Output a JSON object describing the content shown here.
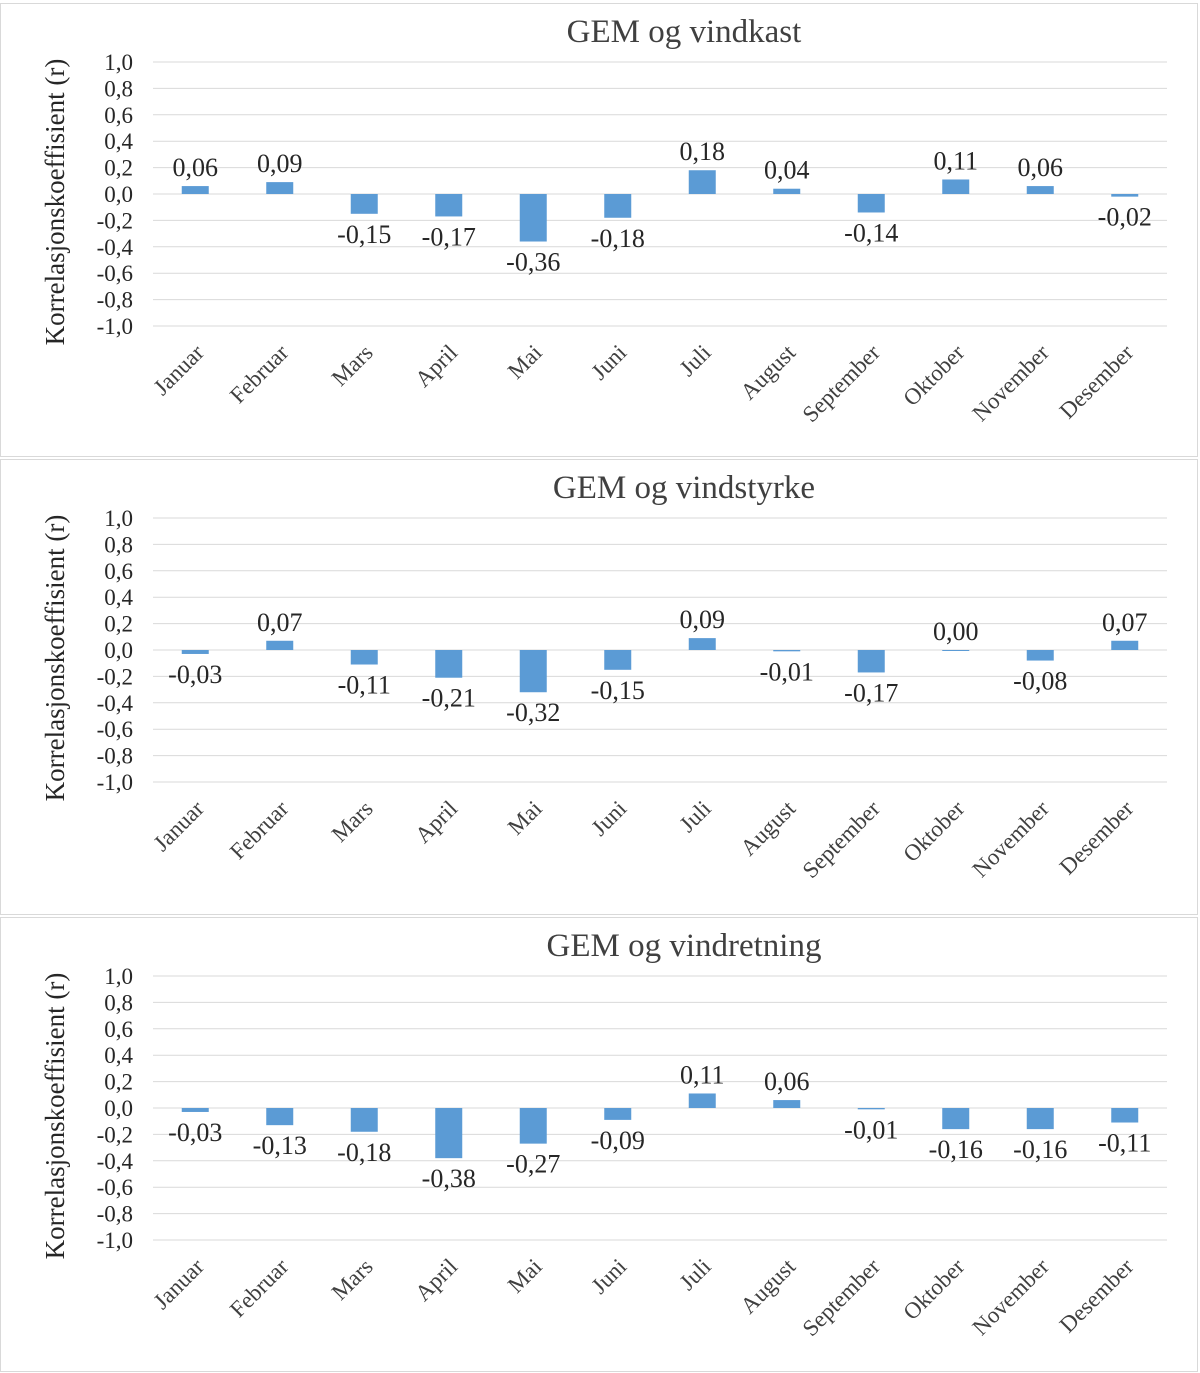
{
  "colors": {
    "bar": "#5b9bd5",
    "grid": "#d9d9d9",
    "text": "#262626"
  },
  "chart_data": [
    {
      "type": "bar",
      "title": "GEM og vindkast",
      "xlabel": "",
      "ylabel": "Korrelasjonskoeffisient (r)",
      "ylim": [
        -1.0,
        1.0
      ],
      "yticks": [
        "1,0",
        "0,8",
        "0,6",
        "0,4",
        "0,2",
        "0,0",
        "-0,2",
        "-0,4",
        "-0,6",
        "-0,8",
        "-1,0"
      ],
      "grid": true,
      "legend": "none",
      "categories": [
        "Januar",
        "Februar",
        "Mars",
        "April",
        "Mai",
        "Juni",
        "Juli",
        "August",
        "September",
        "Oktober",
        "November",
        "Desember"
      ],
      "values": [
        0.06,
        0.09,
        -0.15,
        -0.17,
        -0.36,
        -0.18,
        0.18,
        0.04,
        -0.14,
        0.11,
        0.06,
        -0.02
      ],
      "value_labels": [
        "0,06",
        "0,09",
        "-0,15",
        "-0,17",
        "-0,36",
        "-0,18",
        "0,18",
        "0,04",
        "-0,14",
        "0,11",
        "0,06",
        "-0,02"
      ]
    },
    {
      "type": "bar",
      "title": "GEM og vindstyrke",
      "xlabel": "",
      "ylabel": "Korrelasjonskoeffisient (r)",
      "ylim": [
        -1.0,
        1.0
      ],
      "yticks": [
        "1,0",
        "0,8",
        "0,6",
        "0,4",
        "0,2",
        "0,0",
        "-0,2",
        "-0,4",
        "-0,6",
        "-0,8",
        "-1,0"
      ],
      "grid": true,
      "legend": "none",
      "categories": [
        "Januar",
        "Februar",
        "Mars",
        "April",
        "Mai",
        "Juni",
        "Juli",
        "August",
        "September",
        "Oktober",
        "November",
        "Desember"
      ],
      "values": [
        -0.03,
        0.07,
        -0.11,
        -0.21,
        -0.32,
        -0.15,
        0.09,
        -0.01,
        -0.17,
        0.0,
        -0.08,
        0.07
      ],
      "value_labels": [
        "-0,03",
        "0,07",
        "-0,11",
        "-0,21",
        "-0,32",
        "-0,15",
        "0,09",
        "-0,01",
        "-0,17",
        "0,00",
        "-0,08",
        "0,07"
      ]
    },
    {
      "type": "bar",
      "title": "GEM og vindretning",
      "xlabel": "",
      "ylabel": "Korrelasjonskoeffisient (r)",
      "ylim": [
        -1.0,
        1.0
      ],
      "yticks": [
        "1,0",
        "0,8",
        "0,6",
        "0,4",
        "0,2",
        "0,0",
        "-0,2",
        "-0,4",
        "-0,6",
        "-0,8",
        "-1,0"
      ],
      "grid": true,
      "legend": "none",
      "categories": [
        "Januar",
        "Februar",
        "Mars",
        "April",
        "Mai",
        "Juni",
        "Juli",
        "August",
        "September",
        "Oktober",
        "November",
        "Desember"
      ],
      "values": [
        -0.03,
        -0.13,
        -0.18,
        -0.38,
        -0.27,
        -0.09,
        0.11,
        0.06,
        -0.01,
        -0.16,
        -0.16,
        -0.11
      ],
      "value_labels": [
        "-0,03",
        "-0,13",
        "-0,18",
        "-0,38",
        "-0,27",
        "-0,09",
        "0,11",
        "0,06",
        "-0,01",
        "-0,16",
        "-0,16",
        "-0,11"
      ]
    }
  ]
}
